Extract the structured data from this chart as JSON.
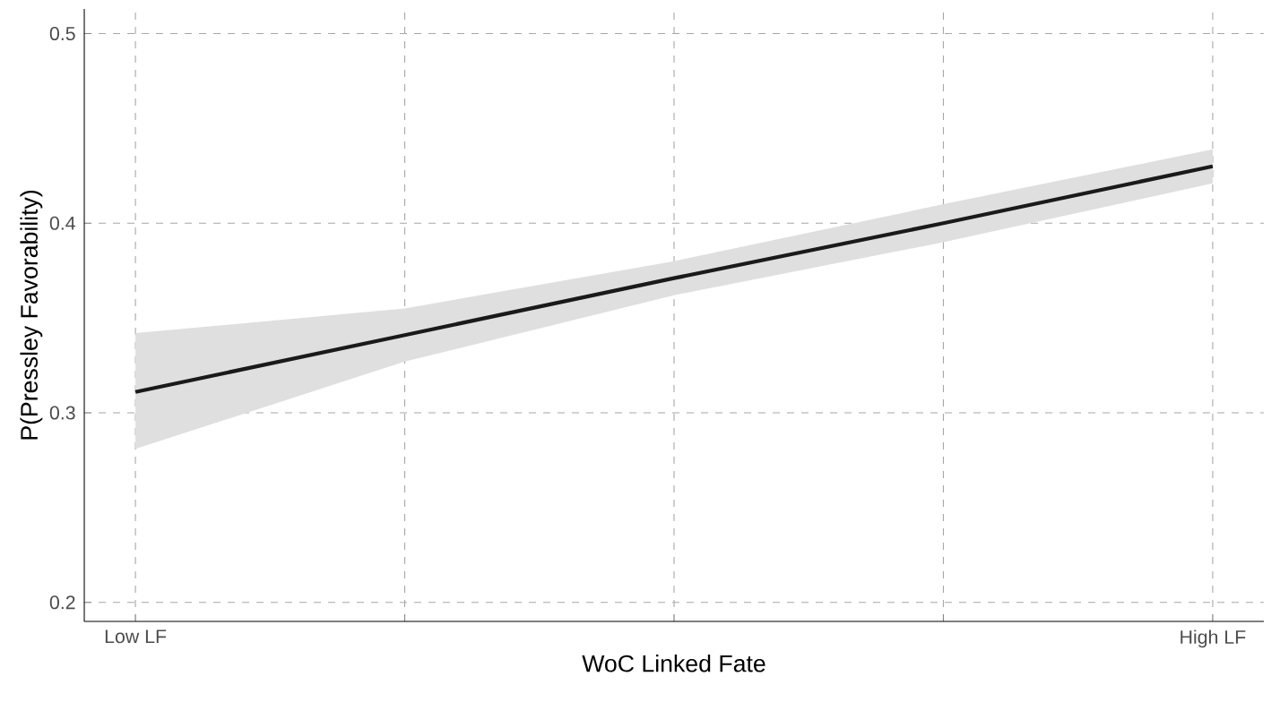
{
  "chart_data": {
    "type": "line",
    "xlabel": "WoC Linked Fate",
    "ylabel": "P(Pressley Favorability)",
    "categories": [
      "Low LF",
      null,
      null,
      null,
      "High LF"
    ],
    "series": [
      {
        "color": "#1a1a1a",
        "values": [
          0.311,
          0.341,
          0.371,
          0.4,
          0.43
        ],
        "lower": [
          0.281,
          0.327,
          0.362,
          0.39,
          0.421
        ],
        "upper": [
          0.342,
          0.355,
          0.38,
          0.41,
          0.439
        ]
      }
    ],
    "ylim": [
      0.19,
      0.513
    ],
    "yticks": [
      0.2,
      0.3,
      0.4,
      0.5
    ],
    "grid": true,
    "line_style": "solid",
    "marker": "none"
  }
}
